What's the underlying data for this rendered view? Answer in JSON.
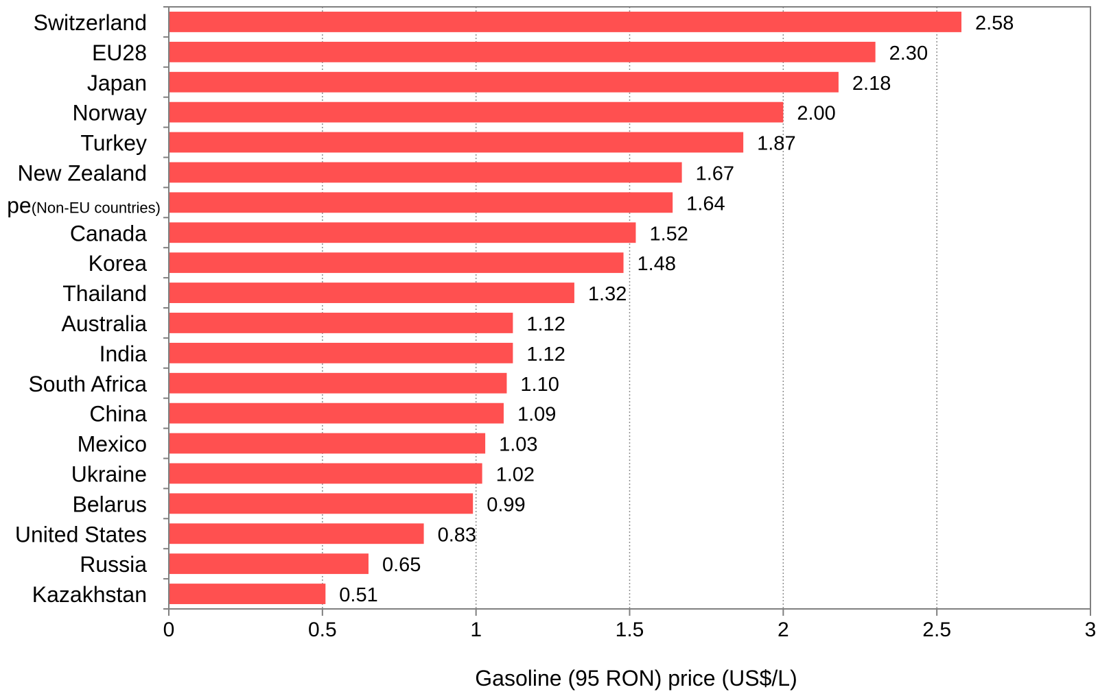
{
  "chart_data": {
    "type": "bar",
    "orientation": "horizontal",
    "categories": [
      {
        "main": "Switzerland",
        "sub": ""
      },
      {
        "main": "EU28",
        "sub": ""
      },
      {
        "main": "Japan",
        "sub": ""
      },
      {
        "main": "Norway",
        "sub": ""
      },
      {
        "main": "Turkey",
        "sub": ""
      },
      {
        "main": "New Zealand",
        "sub": ""
      },
      {
        "main": "pe",
        "sub": "(Non-EU countries)"
      },
      {
        "main": "Canada",
        "sub": ""
      },
      {
        "main": "Korea",
        "sub": ""
      },
      {
        "main": "Thailand",
        "sub": ""
      },
      {
        "main": "Australia",
        "sub": ""
      },
      {
        "main": "India",
        "sub": ""
      },
      {
        "main": "South Africa",
        "sub": ""
      },
      {
        "main": "China",
        "sub": ""
      },
      {
        "main": "Mexico",
        "sub": ""
      },
      {
        "main": "Ukraine",
        "sub": ""
      },
      {
        "main": "Belarus",
        "sub": ""
      },
      {
        "main": "United States",
        "sub": ""
      },
      {
        "main": "Russia",
        "sub": ""
      },
      {
        "main": "Kazakhstan",
        "sub": ""
      }
    ],
    "values": [
      2.58,
      2.3,
      2.18,
      2.0,
      1.87,
      1.67,
      1.64,
      1.52,
      1.48,
      1.32,
      1.12,
      1.12,
      1.1,
      1.09,
      1.03,
      1.02,
      0.99,
      0.83,
      0.65,
      0.51
    ],
    "value_labels": [
      "2.58",
      "2.30",
      "2.18",
      "2.00",
      "1.87",
      "1.67",
      "1.64",
      "1.52",
      "1.48",
      "1.32",
      "1.12",
      "1.12",
      "1.10",
      "1.09",
      "1.03",
      "1.02",
      "0.99",
      "0.83",
      "0.65",
      "0.51"
    ],
    "xlabel": "Gasoline (95  RON)  price  (US$/L)",
    "xlim": [
      0,
      3
    ],
    "xticks": [
      0,
      0.5,
      1,
      1.5,
      2,
      2.5,
      3
    ],
    "xtick_labels": [
      "0",
      "0.5",
      "1",
      "1.5",
      "2",
      "2.5",
      "3"
    ],
    "grid": "vertical dotted",
    "bar_color": "#ff5050"
  }
}
